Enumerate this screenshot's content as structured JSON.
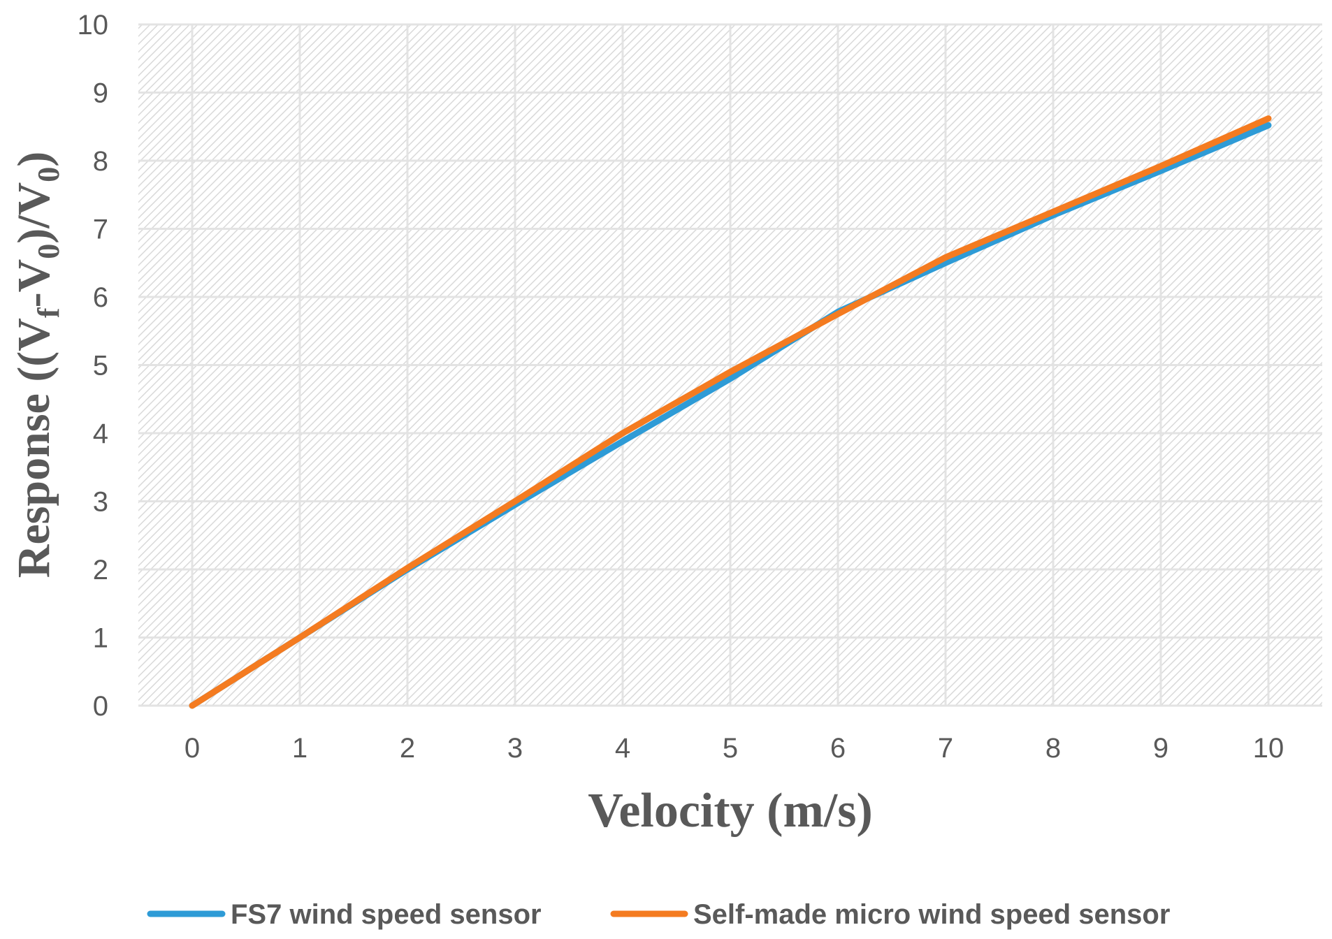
{
  "chart_data": {
    "type": "line",
    "title": "",
    "xlabel": "Velocity (m/s)",
    "ylabel": {
      "prefix": "Response ((V",
      "sub1": "f",
      "mid": "-V",
      "sub2": "0",
      "mid2": ")/V",
      "sub3": "0",
      "suffix": ")"
    },
    "x": [
      0,
      1,
      2,
      3,
      4,
      5,
      6,
      7,
      8,
      9,
      10
    ],
    "xlim": [
      -0.5,
      10.5
    ],
    "ylim": [
      0,
      10
    ],
    "xticks": [
      "0",
      "1",
      "2",
      "3",
      "4",
      "5",
      "6",
      "7",
      "8",
      "9",
      "10"
    ],
    "yticks": [
      "0",
      "1",
      "2",
      "3",
      "4",
      "5",
      "6",
      "7",
      "8",
      "9",
      "10"
    ],
    "grid": true,
    "legend_position": "bottom",
    "series": [
      {
        "name": "FS7 wind speed sensor",
        "color": "#2e9bd6",
        "values": [
          0,
          1.0,
          2.0,
          2.95,
          3.88,
          4.8,
          5.78,
          6.5,
          7.2,
          7.85,
          8.52
        ]
      },
      {
        "name": "Self-made micro wind speed sensor",
        "color": "#f47b20",
        "values": [
          0,
          1.0,
          2.02,
          3.0,
          4.0,
          4.9,
          5.75,
          6.58,
          7.25,
          7.92,
          8.62
        ]
      }
    ]
  }
}
